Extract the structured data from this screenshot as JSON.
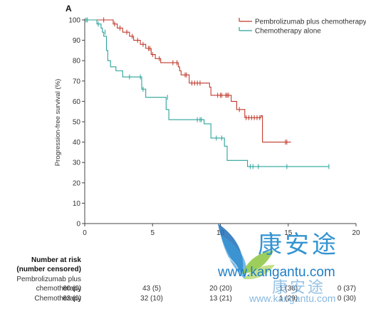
{
  "chart_data": {
    "type": "line",
    "panel_label": "A",
    "ylabel": "Progression-free survival (%)",
    "xlabel": "",
    "xlim": [
      0,
      20
    ],
    "ylim": [
      0,
      100
    ],
    "x_ticks": [
      0,
      5,
      10,
      15,
      20
    ],
    "y_ticks": [
      0,
      10,
      20,
      30,
      40,
      50,
      60,
      70,
      80,
      90,
      100
    ],
    "grid": false,
    "legend_position": "top-right",
    "series": [
      {
        "name": "Pembrolizumab plus chemotherapy",
        "color": "#c0392b",
        "steps": [
          [
            0,
            100
          ],
          [
            2.1,
            100
          ],
          [
            2.1,
            98
          ],
          [
            2.4,
            98
          ],
          [
            2.4,
            96
          ],
          [
            2.8,
            96
          ],
          [
            2.8,
            94
          ],
          [
            3.3,
            94
          ],
          [
            3.3,
            92
          ],
          [
            3.6,
            92
          ],
          [
            3.6,
            90
          ],
          [
            4.1,
            90
          ],
          [
            4.1,
            88
          ],
          [
            4.5,
            88
          ],
          [
            4.5,
            86
          ],
          [
            4.9,
            86
          ],
          [
            4.9,
            83
          ],
          [
            5.2,
            83
          ],
          [
            5.2,
            81
          ],
          [
            5.6,
            81
          ],
          [
            5.6,
            79
          ],
          [
            6.9,
            79
          ],
          [
            6.9,
            77
          ],
          [
            7.0,
            77
          ],
          [
            7.0,
            75
          ],
          [
            7.1,
            75
          ],
          [
            7.1,
            73
          ],
          [
            7.7,
            73
          ],
          [
            7.7,
            69
          ],
          [
            9.2,
            69
          ],
          [
            9.2,
            67
          ],
          [
            9.3,
            67
          ],
          [
            9.3,
            63
          ],
          [
            10.8,
            63
          ],
          [
            10.8,
            60
          ],
          [
            11.2,
            60
          ],
          [
            11.2,
            56
          ],
          [
            11.8,
            56
          ],
          [
            11.8,
            52
          ],
          [
            13.0,
            52
          ],
          [
            13.0,
            53
          ],
          [
            13.1,
            53
          ],
          [
            13.1,
            40
          ],
          [
            15.2,
            40
          ],
          [
            15.2,
            40
          ]
        ],
        "censors": [
          [
            1.4,
            100
          ],
          [
            2.2,
            98
          ],
          [
            2.6,
            96
          ],
          [
            3.1,
            94
          ],
          [
            3.5,
            92
          ],
          [
            3.9,
            90
          ],
          [
            4.3,
            88
          ],
          [
            4.7,
            86
          ],
          [
            4.8,
            86
          ],
          [
            5.0,
            83
          ],
          [
            5.5,
            81
          ],
          [
            6.5,
            79
          ],
          [
            6.8,
            79
          ],
          [
            7.4,
            73
          ],
          [
            7.5,
            73
          ],
          [
            7.9,
            69
          ],
          [
            8.1,
            69
          ],
          [
            8.3,
            69
          ],
          [
            8.5,
            69
          ],
          [
            9.8,
            63
          ],
          [
            10.0,
            63
          ],
          [
            10.1,
            63
          ],
          [
            10.4,
            63
          ],
          [
            10.5,
            63
          ],
          [
            10.6,
            63
          ],
          [
            11.4,
            56
          ],
          [
            11.9,
            52
          ],
          [
            12.1,
            52
          ],
          [
            12.3,
            52
          ],
          [
            12.5,
            52
          ],
          [
            12.7,
            52
          ],
          [
            12.9,
            52
          ],
          [
            14.8,
            40
          ],
          [
            14.9,
            40
          ]
        ]
      },
      {
        "name": "Chemotherapy alone",
        "color": "#2aa39a",
        "steps": [
          [
            0,
            100
          ],
          [
            0.9,
            100
          ],
          [
            0.9,
            98
          ],
          [
            1.2,
            98
          ],
          [
            1.2,
            96
          ],
          [
            1.3,
            96
          ],
          [
            1.3,
            94
          ],
          [
            1.4,
            94
          ],
          [
            1.4,
            92
          ],
          [
            1.6,
            92
          ],
          [
            1.6,
            85
          ],
          [
            1.7,
            85
          ],
          [
            1.7,
            80
          ],
          [
            1.9,
            80
          ],
          [
            1.9,
            77
          ],
          [
            2.3,
            77
          ],
          [
            2.3,
            75
          ],
          [
            2.8,
            75
          ],
          [
            2.8,
            72
          ],
          [
            4.2,
            72
          ],
          [
            4.2,
            66
          ],
          [
            4.5,
            66
          ],
          [
            4.5,
            62
          ],
          [
            6.0,
            62
          ],
          [
            6.0,
            56
          ],
          [
            6.2,
            56
          ],
          [
            6.2,
            51
          ],
          [
            8.8,
            51
          ],
          [
            8.8,
            49
          ],
          [
            9.3,
            49
          ],
          [
            9.3,
            42
          ],
          [
            10.3,
            42
          ],
          [
            10.3,
            38
          ],
          [
            10.5,
            38
          ],
          [
            10.5,
            31
          ],
          [
            12.0,
            31
          ],
          [
            12.0,
            28
          ],
          [
            18.0,
            28
          ],
          [
            18.0,
            28
          ]
        ],
        "censors": [
          [
            0.1,
            100
          ],
          [
            0.2,
            100
          ],
          [
            1.0,
            98
          ],
          [
            1.5,
            94
          ],
          [
            3.3,
            72
          ],
          [
            4.1,
            72
          ],
          [
            4.3,
            66
          ],
          [
            6.1,
            62
          ],
          [
            8.3,
            51
          ],
          [
            8.5,
            51
          ],
          [
            8.6,
            51
          ],
          [
            9.7,
            42
          ],
          [
            10.1,
            42
          ],
          [
            12.2,
            28
          ],
          [
            12.4,
            28
          ],
          [
            12.8,
            28
          ],
          [
            14.9,
            28
          ],
          [
            18.0,
            28
          ]
        ]
      }
    ]
  },
  "risk_table": {
    "title_line1": "Number at risk",
    "title_line2": "(number censored)",
    "rows": [
      {
        "label_line1": "Pembrolizumab plus",
        "label_line2": "chemotherapy",
        "values": [
          "60 (0)",
          "43 (5)",
          "20 (20)",
          "1 (36)",
          "0 (37)"
        ]
      },
      {
        "label_line1": "Chemotherapy",
        "label_line2": "",
        "values": [
          "63 (0)",
          "32 (10)",
          "13 (21)",
          "1 (29)",
          "0 (30)"
        ]
      }
    ]
  },
  "watermark": {
    "brand_cn": "康安途",
    "url": "www.kangantu.com",
    "icon": "leaf-logo"
  }
}
